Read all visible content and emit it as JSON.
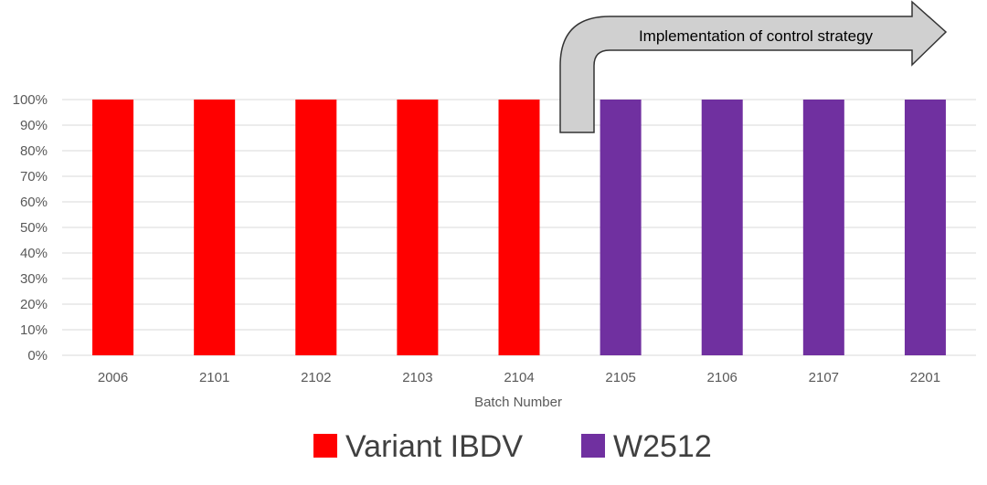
{
  "chart_data": {
    "type": "bar",
    "stacked": true,
    "categories": [
      "2006",
      "2101",
      "2102",
      "2103",
      "2104",
      "2105",
      "2106",
      "2107",
      "2201"
    ],
    "series": [
      {
        "name": "Variant IBDV",
        "color": "#ff0000",
        "values": [
          100,
          100,
          100,
          100,
          100,
          0,
          0,
          0,
          0
        ]
      },
      {
        "name": "W2512",
        "color": "#7030a0",
        "values": [
          0,
          0,
          0,
          0,
          0,
          100,
          100,
          100,
          100
        ]
      }
    ],
    "xlabel": "Batch Number",
    "ylabel": "",
    "ylim": [
      0,
      100
    ],
    "yticks": [
      "0%",
      "10%",
      "20%",
      "30%",
      "40%",
      "50%",
      "60%",
      "70%",
      "80%",
      "90%",
      "100%"
    ],
    "grid": true,
    "legend": "bottom",
    "annotation": {
      "text": "Implementation of control strategy",
      "from_category": "2105",
      "to_category": "2201"
    }
  }
}
